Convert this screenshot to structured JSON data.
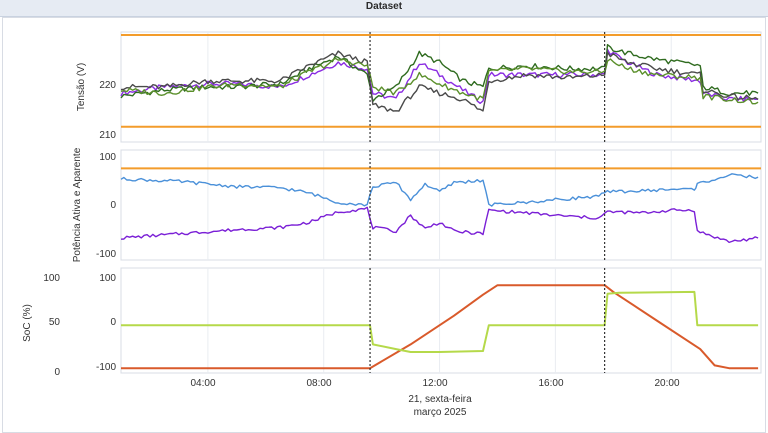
{
  "window": {
    "title": "Dataset"
  },
  "colors": {
    "limit": "#f39c2b",
    "phase_a": "#8a2be2",
    "phase_b": "#2f6b1f",
    "phase_c": "#4a4a4a",
    "phase_d": "#5a8f2a",
    "active_power": "#7a1fd6",
    "apparent_power": "#4a90d9",
    "soc": "#d95a2b",
    "battery_mode": "#b5d94a",
    "grid": "#e9ecf1",
    "event": "#333333"
  },
  "x_axis": {
    "ticks": [
      "04:00",
      "08:00",
      "12:00",
      "16:00",
      "20:00"
    ],
    "date_line1": "21, sexta-feira",
    "date_line2": "março 2025"
  },
  "chart_data": [
    {
      "type": "line",
      "ylabel": "Tensão (V)",
      "yticks": [
        "220",
        "210"
      ],
      "ylim": [
        210,
        228
      ],
      "xlim": [
        1.0,
        23.1
      ],
      "limits": [
        227.5,
        212.5
      ],
      "events_x": [
        9.6,
        17.7
      ],
      "series": [
        {
          "values": [
            [
              1,
              218
            ],
            [
              2.5,
              219
            ],
            [
              4,
              219.5
            ],
            [
              5,
              219.5
            ],
            [
              6.5,
              219
            ],
            [
              7.5,
              221
            ],
            [
              8.5,
              223
            ],
            [
              9.5,
              222
            ],
            [
              9.7,
              218
            ],
            [
              10.5,
              217
            ],
            [
              11.3,
              223
            ],
            [
              12,
              221
            ],
            [
              12.8,
              218.5
            ],
            [
              13.5,
              216.5
            ],
            [
              13.7,
              221
            ],
            [
              15,
              221
            ],
            [
              16.5,
              221
            ],
            [
              17.7,
              221
            ],
            [
              17.8,
              225
            ],
            [
              18.5,
              223
            ],
            [
              19.5,
              221
            ],
            [
              21,
              220
            ],
            [
              21.1,
              218
            ],
            [
              22,
              217
            ],
            [
              23,
              217
            ]
          ]
        },
        {
          "values": [
            [
              1,
              217.5
            ],
            [
              2.5,
              218.5
            ],
            [
              4,
              219
            ],
            [
              5,
              219
            ],
            [
              6.5,
              219.5
            ],
            [
              7.5,
              222
            ],
            [
              8.5,
              224
            ],
            [
              9.5,
              221
            ],
            [
              9.7,
              217
            ],
            [
              10.5,
              219
            ],
            [
              11.3,
              224.5
            ],
            [
              12,
              223
            ],
            [
              12.8,
              220
            ],
            [
              13.5,
              219
            ],
            [
              13.7,
              222
            ],
            [
              15,
              222.5
            ],
            [
              16.5,
              222
            ],
            [
              17.7,
              222
            ],
            [
              17.8,
              225.5
            ],
            [
              18.5,
              224.5
            ],
            [
              19.5,
              223.5
            ],
            [
              21,
              222.5
            ],
            [
              21.1,
              219
            ],
            [
              22,
              218
            ],
            [
              23,
              218
            ]
          ]
        },
        {
          "values": [
            [
              1,
              219
            ],
            [
              2.5,
              219
            ],
            [
              4,
              220
            ],
            [
              5,
              220
            ],
            [
              6.5,
              220
            ],
            [
              7.5,
              222.5
            ],
            [
              8.5,
              224.5
            ],
            [
              9.5,
              223
            ],
            [
              9.7,
              216
            ],
            [
              10.5,
              215
            ],
            [
              11.3,
              219
            ],
            [
              12,
              218
            ],
            [
              12.8,
              217
            ],
            [
              13.5,
              215
            ],
            [
              13.7,
              220
            ],
            [
              15,
              221
            ],
            [
              16.5,
              220.5
            ],
            [
              17.7,
              221
            ],
            [
              17.8,
              224.5
            ],
            [
              18.5,
              223
            ],
            [
              19.5,
              222
            ],
            [
              21,
              221
            ],
            [
              21.1,
              218.5
            ],
            [
              22,
              217.5
            ],
            [
              23,
              217
            ]
          ]
        },
        {
          "values": [
            [
              1,
              218.5
            ],
            [
              2.5,
              218
            ],
            [
              4,
              219
            ],
            [
              5,
              219.5
            ],
            [
              6.5,
              219
            ],
            [
              7.5,
              221.5
            ],
            [
              8.5,
              223.5
            ],
            [
              9.5,
              222.5
            ],
            [
              9.7,
              219
            ],
            [
              10.5,
              218
            ],
            [
              11.3,
              221
            ],
            [
              12,
              219.5
            ],
            [
              12.8,
              218
            ],
            [
              13.5,
              217
            ],
            [
              13.7,
              221.5
            ],
            [
              15,
              222
            ],
            [
              16.5,
              221.5
            ],
            [
              17.7,
              221.5
            ],
            [
              17.8,
              223.5
            ],
            [
              18.5,
              222
            ],
            [
              19.5,
              221
            ],
            [
              21,
              220.5
            ],
            [
              21.1,
              217.5
            ],
            [
              22,
              217
            ],
            [
              23,
              216.5
            ]
          ]
        }
      ]
    },
    {
      "type": "line",
      "ylabel": "Potência Ativa e Aparente",
      "yticks": [
        "100",
        "0",
        "-100"
      ],
      "ylim": [
        -100,
        110
      ],
      "xlim": [
        1.0,
        23.1
      ],
      "limits": [
        75
      ],
      "events_x": [
        9.6,
        17.7
      ],
      "series": [
        {
          "values": [
            [
              1,
              -58
            ],
            [
              3,
              -50
            ],
            [
              5,
              -42
            ],
            [
              6.5,
              -38
            ],
            [
              7.5,
              -28
            ],
            [
              8.5,
              -8
            ],
            [
              9.5,
              -2
            ],
            [
              9.7,
              -38
            ],
            [
              10.5,
              -45
            ],
            [
              11,
              -15
            ],
            [
              11.5,
              -40
            ],
            [
              12,
              -28
            ],
            [
              12.5,
              -45
            ],
            [
              13.5,
              -50
            ],
            [
              13.7,
              -5
            ],
            [
              15,
              -10
            ],
            [
              16,
              -15
            ],
            [
              17.5,
              -20
            ],
            [
              17.8,
              -8
            ],
            [
              19,
              -10
            ],
            [
              20,
              -5
            ],
            [
              20.8,
              -5
            ],
            [
              20.9,
              -45
            ],
            [
              22,
              -65
            ],
            [
              23,
              -58
            ]
          ]
        },
        {
          "values": [
            [
              1,
              55
            ],
            [
              3,
              50
            ],
            [
              5,
              40
            ],
            [
              6.5,
              38
            ],
            [
              7.5,
              28
            ],
            [
              8.5,
              10
            ],
            [
              9.5,
              5
            ],
            [
              9.7,
              40
            ],
            [
              10.5,
              48
            ],
            [
              11,
              15
            ],
            [
              11.5,
              45
            ],
            [
              12,
              30
            ],
            [
              12.5,
              48
            ],
            [
              13.5,
              52
            ],
            [
              13.7,
              5
            ],
            [
              15,
              10
            ],
            [
              16,
              15
            ],
            [
              17.5,
              22
            ],
            [
              17.8,
              30
            ],
            [
              19,
              32
            ],
            [
              20,
              35
            ],
            [
              20.8,
              35
            ],
            [
              20.9,
              45
            ],
            [
              22,
              62
            ],
            [
              23,
              58
            ]
          ]
        }
      ]
    },
    {
      "type": "line",
      "ylabel": "SoC (%)",
      "yticks_left": [
        "100",
        "50",
        "0"
      ],
      "yticks_right": [
        "100",
        "0",
        "-100"
      ],
      "ylim": [
        0,
        110
      ],
      "xlim": [
        1.0,
        23.1
      ],
      "events_x": [
        9.6,
        17.7
      ],
      "series": [
        {
          "values": [
            [
              1,
              5
            ],
            [
              9.6,
              5
            ],
            [
              11,
              30
            ],
            [
              12.5,
              60
            ],
            [
              13.5,
              82
            ],
            [
              14,
              92
            ],
            [
              17.7,
              92
            ],
            [
              18,
              85
            ],
            [
              19.5,
              55
            ],
            [
              21,
              25
            ],
            [
              21.5,
              8
            ],
            [
              22,
              5
            ],
            [
              23,
              5
            ]
          ]
        },
        {
          "values": [
            [
              1,
              50
            ],
            [
              9.6,
              50
            ],
            [
              9.7,
              30
            ],
            [
              10.5,
              25
            ],
            [
              11,
              22
            ],
            [
              12,
              22
            ],
            [
              13.5,
              23
            ],
            [
              13.7,
              50
            ],
            [
              17.7,
              50
            ],
            [
              17.8,
              83
            ],
            [
              18.2,
              84
            ],
            [
              20.8,
              85
            ],
            [
              20.9,
              50
            ],
            [
              23,
              50
            ]
          ]
        }
      ]
    }
  ]
}
